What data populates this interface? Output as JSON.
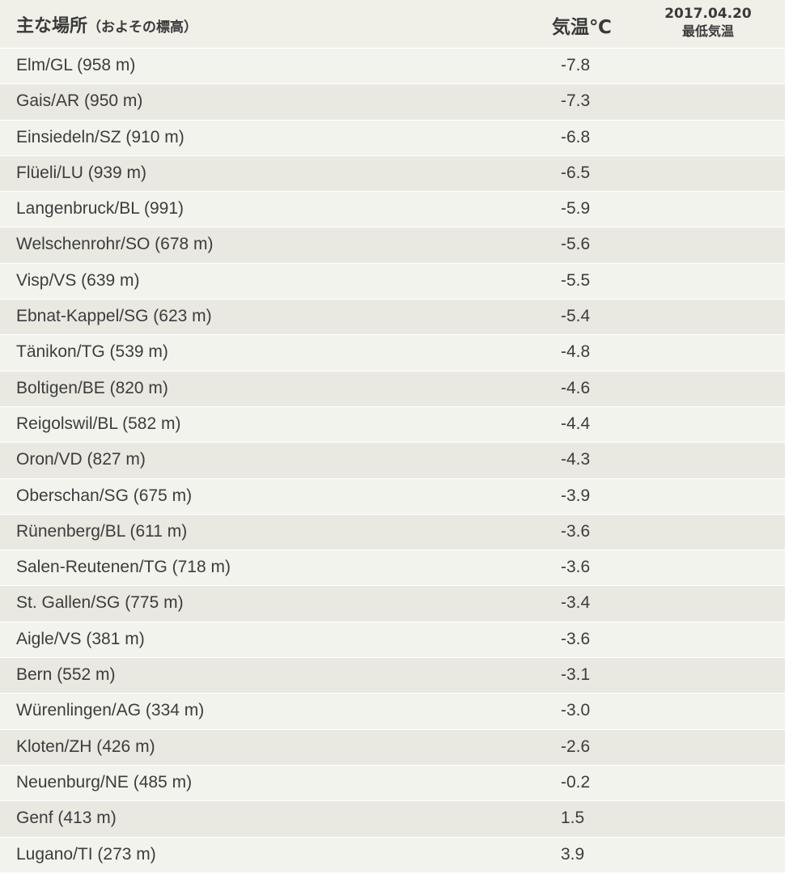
{
  "header": {
    "location_label": "主な場所",
    "location_sub": "（およその標高）",
    "temp_label": "気温℃",
    "date": "2017.04.20",
    "date_sub": "最低気温"
  },
  "rows": [
    {
      "location": "Elm/GL (958 m)",
      "temp": "-7.8"
    },
    {
      "location": "Gais/AR (950 m)",
      "temp": "-7.3"
    },
    {
      "location": "Einsiedeln/SZ (910 m)",
      "temp": "-6.8"
    },
    {
      "location": "Flüeli/LU (939 m)",
      "temp": "-6.5"
    },
    {
      "location": "Langenbruck/BL (991)",
      "temp": "-5.9"
    },
    {
      "location": "Welschenrohr/SO (678 m)",
      "temp": "-5.6"
    },
    {
      "location": "Visp/VS (639 m)",
      "temp": "-5.5"
    },
    {
      "location": "Ebnat-Kappel/SG (623 m)",
      "temp": "-5.4"
    },
    {
      "location": "Tänikon/TG (539 m)",
      "temp": "-4.8"
    },
    {
      "location": "Boltigen/BE (820 m)",
      "temp": "-4.6"
    },
    {
      "location": "Reigolswil/BL (582 m)",
      "temp": "-4.4"
    },
    {
      "location": "Oron/VD (827 m)",
      "temp": "-4.3"
    },
    {
      "location": "Oberschan/SG (675 m)",
      "temp": "-3.9"
    },
    {
      "location": "Rünenberg/BL (611 m)",
      "temp": "-3.6"
    },
    {
      "location": "Salen-Reutenen/TG (718 m)",
      "temp": "-3.6"
    },
    {
      "location": "St. Gallen/SG (775 m)",
      "temp": "-3.4"
    },
    {
      "location": "Aigle/VS (381 m)",
      "temp": "-3.6"
    },
    {
      "location": "Bern (552 m)",
      "temp": "-3.1"
    },
    {
      "location": "Würenlingen/AG (334 m)",
      "temp": "-3.0"
    },
    {
      "location": "Kloten/ZH (426 m)",
      "temp": "-2.6"
    },
    {
      "location": "Neuenburg/NE (485 m)",
      "temp": "-0.2"
    },
    {
      "location": "Genf (413 m)",
      "temp": "1.5"
    },
    {
      "location": "Lugano/TI (273 m)",
      "temp": "3.9"
    }
  ]
}
